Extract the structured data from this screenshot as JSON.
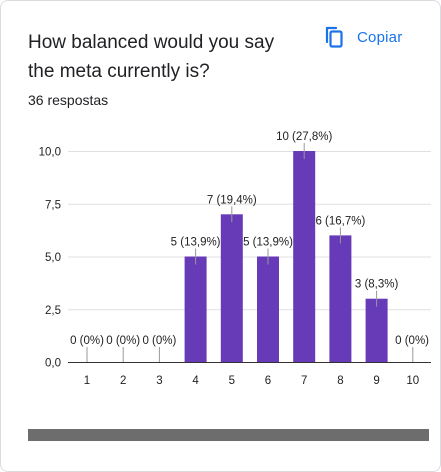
{
  "question": {
    "title": "How balanced would you say the meta currently is?",
    "copy_label": "Copiar",
    "response_count": "36 respostas"
  },
  "colors": {
    "bar": "#673ab7",
    "accent": "#1a73e8"
  },
  "icons": {
    "copy": "copy-icon"
  },
  "chart_data": {
    "type": "bar",
    "categories": [
      "1",
      "2",
      "3",
      "4",
      "5",
      "6",
      "7",
      "8",
      "9",
      "10"
    ],
    "values": [
      0,
      0,
      0,
      5,
      7,
      5,
      10,
      6,
      3,
      0
    ],
    "data_labels": [
      "0 (0%)",
      "0 (0%)",
      "0 (0%)",
      "5 (13,9%)",
      "7 (19,4%)",
      "5 (13,9%)",
      "10 (27,8%)",
      "6 (16,7%)",
      "3 (8,3%)",
      "0 (0%)"
    ],
    "y_ticks": [
      "0,0",
      "2,5",
      "5,0",
      "7,5",
      "10,0"
    ],
    "y_tick_values": [
      0,
      2.5,
      5,
      7.5,
      10
    ],
    "ylim": [
      0,
      10
    ],
    "grid": true,
    "title": "",
    "xlabel": "",
    "ylabel": ""
  },
  "scrollbar": {
    "position": 0
  }
}
